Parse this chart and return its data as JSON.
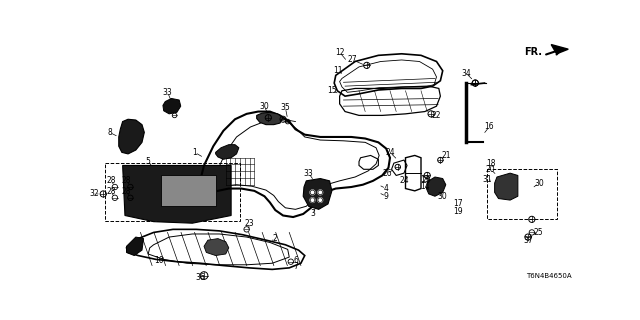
{
  "bg_color": "#ffffff",
  "diagram_code": "T6N4B4650A",
  "fr_label": "FR.",
  "line_color": "#000000",
  "label_fontsize": 5.5
}
